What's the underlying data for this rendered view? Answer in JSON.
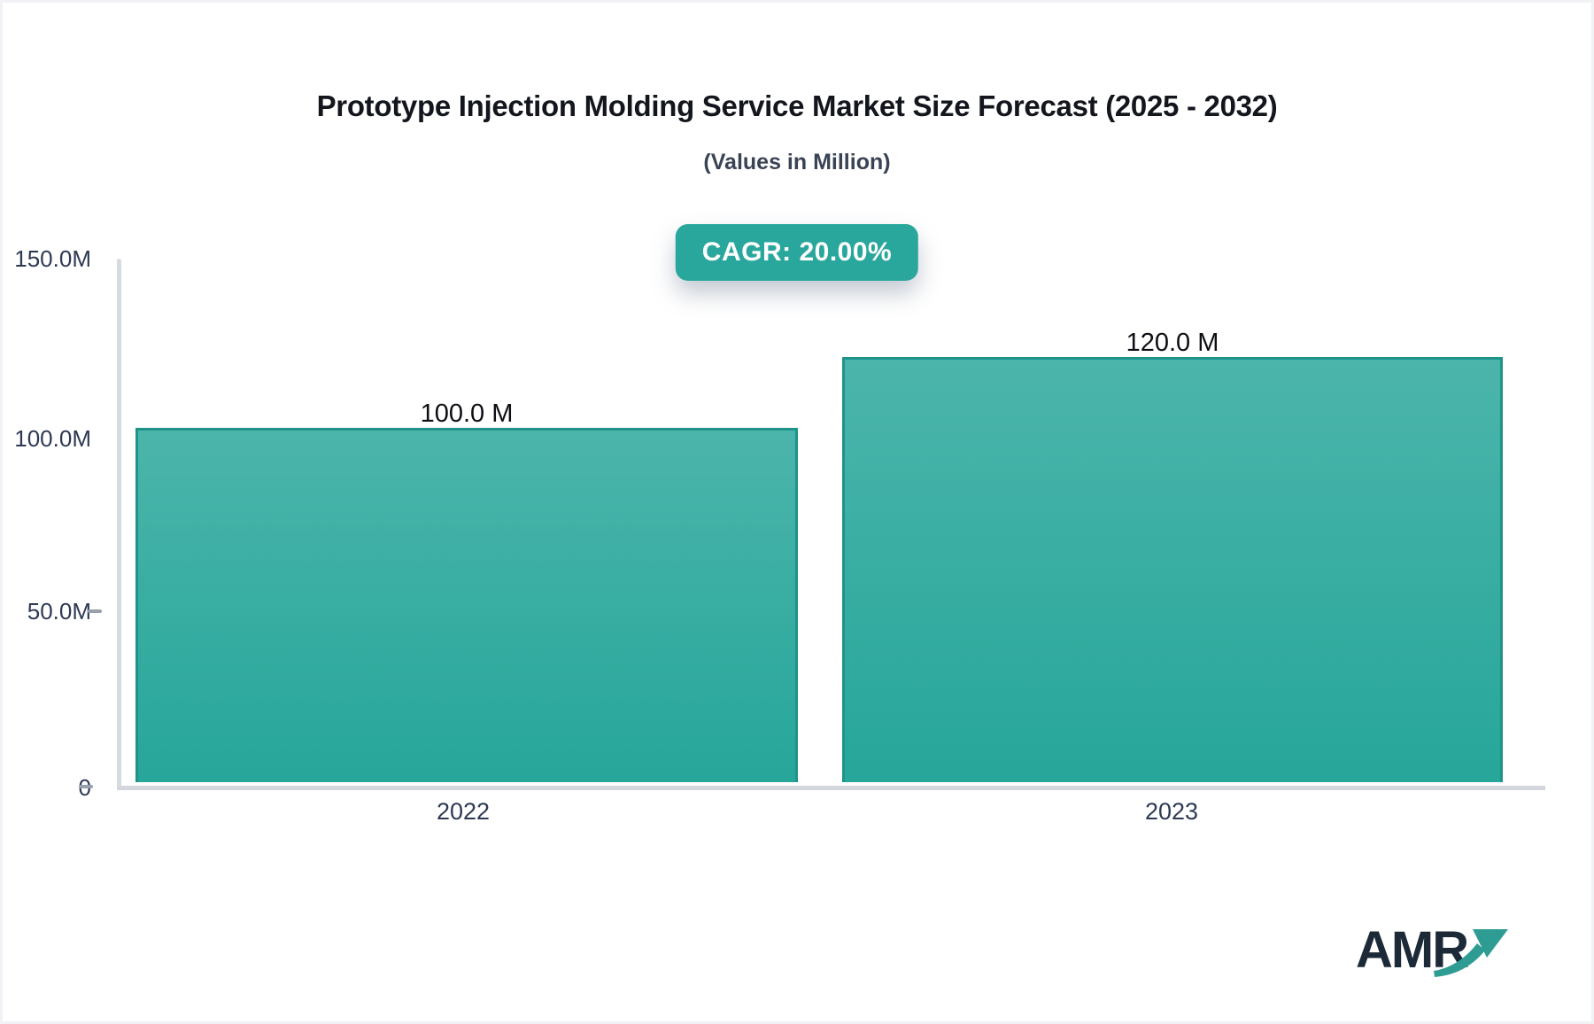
{
  "header": {
    "title": "Prototype Injection Molding Service Market Size Forecast (2025 - 2032)",
    "subtitle": "(Values in Million)",
    "cagr_badge": "CAGR: 20.00%"
  },
  "chart_data": {
    "type": "bar",
    "title": "Prototype Injection Molding Service Market Size Forecast (2025 - 2032)",
    "subtitle": "(Values in Million)",
    "unit": "Million",
    "cagr_percent": 20.0,
    "cagr_label": "CAGR: 20.00%",
    "categories": [
      "2022",
      "2023"
    ],
    "values": [
      100.0,
      120.0
    ],
    "value_labels": [
      "100.0 M",
      "120.0 M"
    ],
    "y_axis": {
      "ticks": [
        "150.0M",
        "100.0M",
        "50.0M",
        "0"
      ],
      "tick_values": [
        150,
        100,
        50,
        0
      ],
      "range": [
        0,
        150
      ]
    },
    "xlabel": "",
    "ylabel": "",
    "grid": false,
    "legend": "none"
  },
  "branding": {
    "logo_text": "AMR"
  },
  "colors": {
    "accent_teal": "#2aa79c",
    "bar_gradient_top": "#4cb5ab",
    "bar_gradient_bottom": "#27a69a",
    "bar_border": "#1f938a",
    "axis_line": "#d3d6dd",
    "tick_text": "#2e3a54",
    "title_text": "#14161e",
    "logo_navy": "#1c2a38",
    "logo_arrow_teal": "#2e9c93"
  }
}
